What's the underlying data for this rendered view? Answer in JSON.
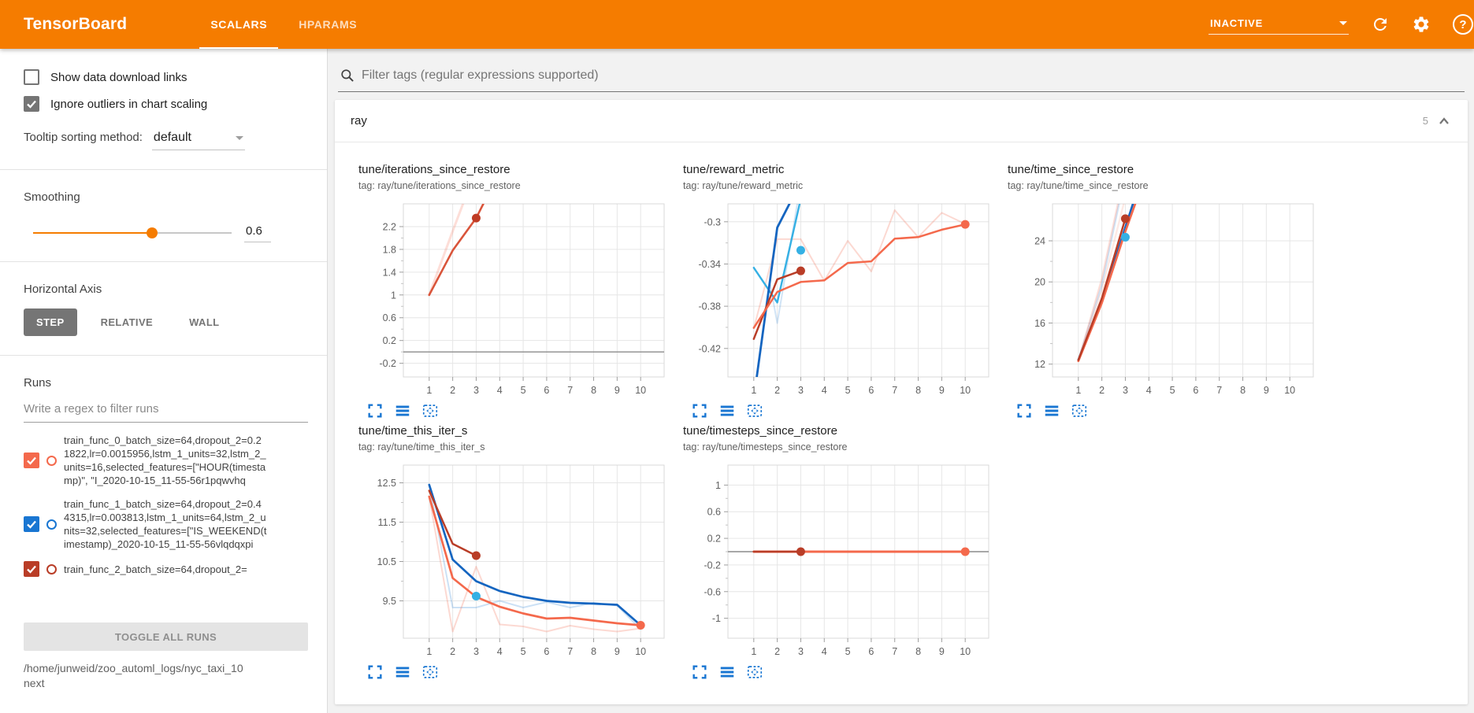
{
  "header": {
    "title": "TensorBoard",
    "tabs": [
      {
        "label": "SCALARS",
        "active": true
      },
      {
        "label": "HPARAMS",
        "active": false
      }
    ],
    "status": "INACTIVE",
    "help_glyph": "?"
  },
  "colors": {
    "accent_orange": "#f57c00",
    "icon_blue": "#1976d2",
    "run_orange": "#f4694c",
    "run_blue": "#1976d2",
    "run_red": "#b93d27",
    "run_cyan": "#35b0e4"
  },
  "sidebar": {
    "checkboxes": [
      {
        "label": "Show data download links",
        "checked": false
      },
      {
        "label": "Ignore outliers in chart scaling",
        "checked": true
      }
    ],
    "tooltip_sorting": {
      "label": "Tooltip sorting method:",
      "value": "default"
    },
    "smoothing": {
      "label": "Smoothing",
      "value": "0.6",
      "fraction": 0.6
    },
    "horizontal_axis": {
      "label": "Horizontal Axis",
      "options": [
        {
          "label": "STEP",
          "active": true
        },
        {
          "label": "RELATIVE",
          "active": false
        },
        {
          "label": "WALL",
          "active": false
        }
      ]
    },
    "runs": {
      "label": "Runs",
      "filter_placeholder": "Write a regex to filter runs",
      "items": [
        {
          "text": "train_func_0_batch_size=64,dropout_2=0.21822,lr=0.0015956,lstm_1_units=32,lstm_2_units=16,selected_features=[\"HOUR(timestamp)\", \"I_2020-10-15_11-55-56r1pqwvhq",
          "color": "#f4694c",
          "checked": true
        },
        {
          "text": "train_func_1_batch_size=64,dropout_2=0.44315,lr=0.003813,lstm_1_units=64,lstm_2_units=32,selected_features=[\"IS_WEEKEND(timestamp)_2020-10-15_11-55-56vlqdqxpi",
          "color": "#1976d2",
          "checked": true
        },
        {
          "text": "train_func_2_batch_size=64,dropout_2=",
          "color": "#b93d27",
          "checked": true
        }
      ],
      "toggle_button": "TOGGLE ALL RUNS",
      "log_dir": "/home/junweid/zoo_automl_logs/nyc_taxi_10next"
    }
  },
  "main": {
    "filter_placeholder": "Filter tags (regular expressions supported)",
    "section": {
      "name": "ray",
      "count": "5"
    }
  },
  "chart_data": [
    {
      "type": "line",
      "title": "tune/iterations_since_restore",
      "tag": "tag: ray/tune/iterations_since_restore",
      "xlim": [
        -0.1,
        11
      ],
      "ylim": [
        -0.44,
        2.6
      ],
      "xticks": [
        1,
        2,
        3,
        4,
        5,
        6,
        7,
        8,
        9,
        10
      ],
      "yticks": [
        [
          2.2,
          "2.2"
        ],
        [
          1.8,
          "1.8"
        ],
        [
          1.4,
          "1.4"
        ],
        [
          1,
          "1"
        ],
        [
          0.6,
          "0.6"
        ],
        [
          0.2,
          "0.2"
        ],
        [
          -0.2,
          "-0.2"
        ]
      ],
      "zero_line": true,
      "series": [
        {
          "color": "#f4694c",
          "opacity": 0.22,
          "width": 3,
          "points": [
            [
              1,
              1
            ],
            [
              2,
              2.12
            ],
            [
              2.55,
              2.72
            ]
          ]
        },
        {
          "color": "#d9543a",
          "opacity": 1,
          "width": 2.6,
          "points": [
            [
              1,
              1
            ],
            [
              2,
              1.78
            ],
            [
              3,
              2.35
            ],
            [
              3.45,
              2.72
            ]
          ],
          "dot": [
            3,
            2.35
          ],
          "dot_color": "#bf3b24"
        }
      ]
    },
    {
      "type": "line",
      "title": "tune/reward_metric",
      "tag": "tag: ray/tune/reward_metric",
      "xlim": [
        -0.1,
        11
      ],
      "ylim": [
        -0.447,
        -0.283
      ],
      "xticks": [
        1,
        2,
        3,
        4,
        5,
        6,
        7,
        8,
        9,
        10
      ],
      "yticks": [
        [
          -0.3,
          "-0.3"
        ],
        [
          -0.34,
          "-0.34"
        ],
        [
          -0.38,
          "-0.38"
        ],
        [
          -0.42,
          "-0.42"
        ]
      ],
      "zero_line": false,
      "series": [
        {
          "color": "#f4694c",
          "opacity": 0.25,
          "width": 2,
          "points": [
            [
              1,
              -0.401
            ],
            [
              2,
              -0.3165
            ],
            [
              3,
              -0.3165
            ],
            [
              4,
              -0.356
            ],
            [
              5,
              -0.318
            ],
            [
              6,
              -0.347
            ],
            [
              7,
              -0.289
            ],
            [
              8,
              -0.3145
            ],
            [
              9,
              -0.2915
            ],
            [
              10,
              -0.302
            ]
          ]
        },
        {
          "color": "#1976d2",
          "opacity": 0.2,
          "width": 2,
          "points": [
            [
              1.7,
              -0.36
            ],
            [
              2,
              -0.396
            ],
            [
              2.85,
              -0.283
            ]
          ]
        },
        {
          "color": "#35b0e4",
          "opacity": 1,
          "width": 2.4,
          "points": [
            [
              1,
              -0.3435
            ],
            [
              2,
              -0.3765
            ],
            [
              2.95,
              -0.283
            ]
          ]
        },
        {
          "color": "#1565c0",
          "opacity": 1,
          "width": 2.8,
          "points": [
            [
              1.12,
              -0.448
            ],
            [
              2,
              -0.3055
            ],
            [
              2.52,
              -0.283
            ]
          ]
        },
        {
          "color": "#b93d27",
          "opacity": 1,
          "width": 2.5,
          "points": [
            [
              1,
              -0.411
            ],
            [
              2,
              -0.3545
            ],
            [
              3,
              -0.3465
            ]
          ],
          "dot": [
            3,
            -0.3465
          ]
        },
        {
          "color": "#f4694c",
          "opacity": 1,
          "width": 2.5,
          "points": [
            [
              1,
              -0.4005
            ],
            [
              2,
              -0.3665
            ],
            [
              3,
              -0.357
            ],
            [
              4,
              -0.3555
            ],
            [
              5,
              -0.339
            ],
            [
              6,
              -0.3375
            ],
            [
              7,
              -0.316
            ],
            [
              8,
              -0.3145
            ],
            [
              9,
              -0.3075
            ],
            [
              10,
              -0.3025
            ]
          ],
          "dot": [
            10,
            -0.3025
          ]
        },
        {
          "color": "#35b0e4",
          "opacity": 1,
          "width": 2,
          "points": [],
          "dot": [
            3,
            -0.327
          ]
        }
      ]
    },
    {
      "type": "line",
      "title": "tune/time_since_restore",
      "tag": "tag: ray/tune/time_since_restore",
      "xlim": [
        -0.1,
        11
      ],
      "ylim": [
        10.75,
        27.6
      ],
      "xticks": [
        1,
        2,
        3,
        4,
        5,
        6,
        7,
        8,
        9,
        10
      ],
      "yticks": [
        [
          24,
          "24"
        ],
        [
          20,
          "20"
        ],
        [
          16,
          "16"
        ],
        [
          12,
          "12"
        ]
      ],
      "zero_line": false,
      "series": [
        {
          "color": "#1976d2",
          "opacity": 0.2,
          "width": 2.4,
          "points": [
            [
              1,
              12.4
            ],
            [
              2,
              19.7
            ],
            [
              2.75,
              27.8
            ]
          ]
        },
        {
          "color": "#f4694c",
          "opacity": 0.22,
          "width": 2.4,
          "points": [
            [
              1,
              12.3
            ],
            [
              2,
              20.3
            ],
            [
              2.7,
              27.8
            ]
          ]
        },
        {
          "color": "#f4694c",
          "opacity": 0.15,
          "width": 2.4,
          "points": [
            [
              1,
              12.3
            ],
            [
              2,
              19.2
            ],
            [
              2.95,
              27.8
            ]
          ]
        },
        {
          "color": "#1565c0",
          "opacity": 1,
          "width": 2.7,
          "points": [
            [
              1,
              12.4
            ],
            [
              2,
              18.15
            ],
            [
              3,
              25.3
            ],
            [
              3.35,
              27.8
            ]
          ]
        },
        {
          "color": "#f4694c",
          "opacity": 1,
          "width": 2.7,
          "points": [
            [
              1,
              12.3
            ],
            [
              2,
              17.95
            ],
            [
              3,
              24.9
            ],
            [
              3.45,
              27.8
            ]
          ]
        },
        {
          "color": "#b93d27",
          "opacity": 1,
          "width": 2.5,
          "points": [
            [
              1,
              12.4
            ],
            [
              2,
              18.4
            ],
            [
              3,
              26.15
            ]
          ],
          "dot": [
            3,
            26.15
          ]
        },
        {
          "color": "#35b0e4",
          "opacity": 1,
          "width": 2,
          "points": [],
          "dot": [
            3,
            24.35
          ]
        }
      ]
    },
    {
      "type": "line",
      "title": "tune/time_this_iter_s",
      "tag": "tag: ray/tune/time_this_iter_s",
      "xlim": [
        -0.1,
        11
      ],
      "ylim": [
        8.55,
        12.95
      ],
      "xticks": [
        1,
        2,
        3,
        4,
        5,
        6,
        7,
        8,
        9,
        10
      ],
      "yticks": [
        [
          12.5,
          "12.5"
        ],
        [
          11.5,
          "11.5"
        ],
        [
          10.5,
          "10.5"
        ],
        [
          9.5,
          "9.5"
        ]
      ],
      "zero_line": false,
      "series": [
        {
          "color": "#1976d2",
          "opacity": 0.22,
          "width": 2,
          "points": [
            [
              1,
              12.45
            ],
            [
              2,
              9.33
            ],
            [
              3,
              9.33
            ],
            [
              4,
              9.5
            ],
            [
              5,
              9.33
            ],
            [
              6,
              9.47
            ],
            [
              7,
              9.33
            ],
            [
              8,
              9.45
            ],
            [
              9,
              9.38
            ],
            [
              10,
              8.78
            ]
          ]
        },
        {
          "color": "#f4694c",
          "opacity": 0.25,
          "width": 2,
          "points": [
            [
              1,
              12.15
            ],
            [
              2,
              8.72
            ],
            [
              3,
              10.37
            ],
            [
              4,
              8.9
            ],
            [
              5,
              8.85
            ],
            [
              6,
              8.72
            ],
            [
              7,
              8.87
            ],
            [
              8,
              8.78
            ],
            [
              9,
              8.72
            ],
            [
              10,
              8.8
            ]
          ]
        },
        {
          "color": "#1565c0",
          "opacity": 1,
          "width": 2.7,
          "points": [
            [
              1,
              12.45
            ],
            [
              2,
              10.55
            ],
            [
              3,
              10.0
            ],
            [
              4,
              9.75
            ],
            [
              5,
              9.6
            ],
            [
              6,
              9.5
            ],
            [
              7,
              9.45
            ],
            [
              8,
              9.43
            ],
            [
              9,
              9.4
            ],
            [
              10,
              8.88
            ]
          ]
        },
        {
          "color": "#f4694c",
          "opacity": 1,
          "width": 2.7,
          "points": [
            [
              1,
              12.15
            ],
            [
              2,
              10.08
            ],
            [
              3,
              9.6
            ],
            [
              4,
              9.35
            ],
            [
              5,
              9.18
            ],
            [
              6,
              9.05
            ],
            [
              7,
              9.07
            ],
            [
              8,
              9.0
            ],
            [
              9,
              8.93
            ],
            [
              10,
              8.88
            ]
          ],
          "dot": [
            10,
            8.88
          ]
        },
        {
          "color": "#b93d27",
          "opacity": 1,
          "width": 2.5,
          "points": [
            [
              1,
              12.3
            ],
            [
              2,
              10.95
            ],
            [
              3,
              10.65
            ]
          ],
          "dot": [
            3,
            10.65
          ]
        },
        {
          "color": "#35b0e4",
          "opacity": 1,
          "width": 2,
          "points": [],
          "dot": [
            3,
            9.62
          ]
        }
      ]
    },
    {
      "type": "line",
      "title": "tune/timesteps_since_restore",
      "tag": "tag: ray/tune/timesteps_since_restore",
      "xlim": [
        -0.1,
        11
      ],
      "ylim": [
        -1.3,
        1.3
      ],
      "xticks": [
        1,
        2,
        3,
        4,
        5,
        6,
        7,
        8,
        9,
        10
      ],
      "yticks": [
        [
          1,
          "1"
        ],
        [
          0.6,
          "0.6"
        ],
        [
          0.2,
          "0.2"
        ],
        [
          -0.2,
          "-0.2"
        ],
        [
          -0.6,
          "-0.6"
        ],
        [
          -1,
          "-1"
        ]
      ],
      "zero_line": true,
      "series": [
        {
          "color": "#f4694c",
          "opacity": 1,
          "width": 3,
          "points": [
            [
              1,
              0
            ],
            [
              10,
              0
            ]
          ],
          "dot": [
            10,
            0
          ]
        },
        {
          "color": "#b93d27",
          "opacity": 1,
          "width": 2.5,
          "points": [
            [
              1,
              0
            ],
            [
              3,
              0
            ]
          ],
          "dot": [
            3,
            0
          ]
        }
      ]
    }
  ]
}
